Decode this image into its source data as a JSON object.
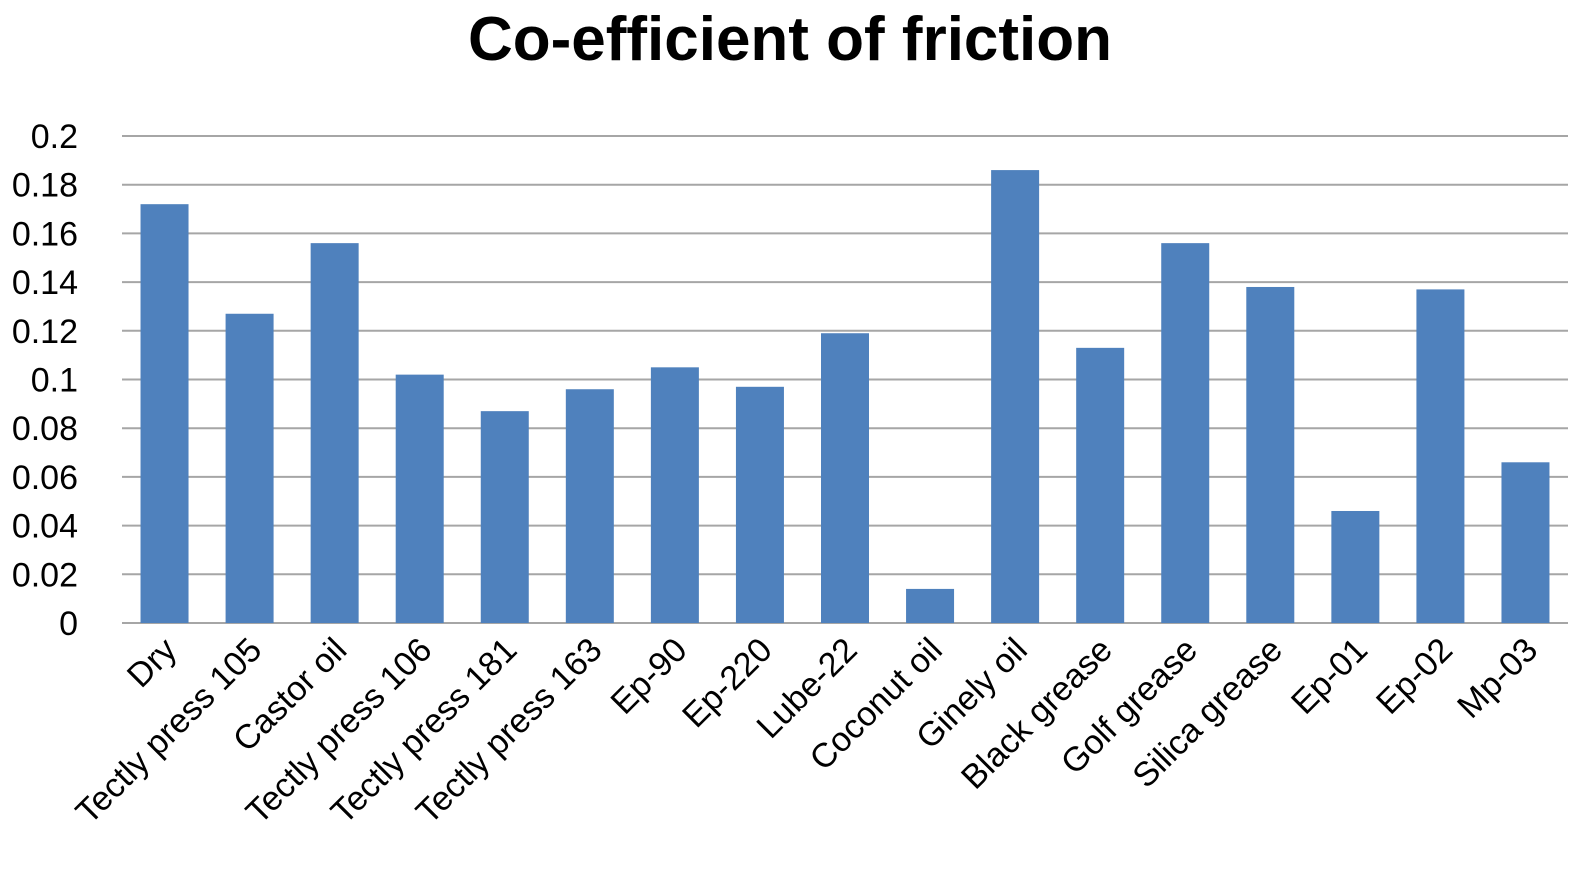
{
  "chart_data": {
    "type": "bar",
    "title": "Co-efficient of friction",
    "xlabel": "",
    "ylabel": "",
    "ylim": [
      0,
      0.2
    ],
    "yticks": [
      "0",
      "0.02",
      "0.04",
      "0.06",
      "0.08",
      "0.1",
      "0.12",
      "0.14",
      "0.16",
      "0.18",
      "0.2"
    ],
    "grid": true,
    "legend": "none",
    "bar_color": "#4F81BD",
    "categories": [
      "Dry",
      "Tectly press 105",
      "Castor oil",
      "Tectly press 106",
      "Tectly press 181",
      "Tectly press 163",
      "Ep-90",
      "Ep-220",
      "Lube-22",
      "Coconut oil",
      "Ginely oil",
      "Black grease",
      "Golf grease",
      "Silica grease",
      "Ep-01",
      "Ep-02",
      "Mp-03"
    ],
    "values": [
      0.172,
      0.127,
      0.156,
      0.102,
      0.087,
      0.096,
      0.105,
      0.097,
      0.119,
      0.014,
      0.186,
      0.113,
      0.156,
      0.138,
      0.046,
      0.137,
      0.066
    ]
  }
}
